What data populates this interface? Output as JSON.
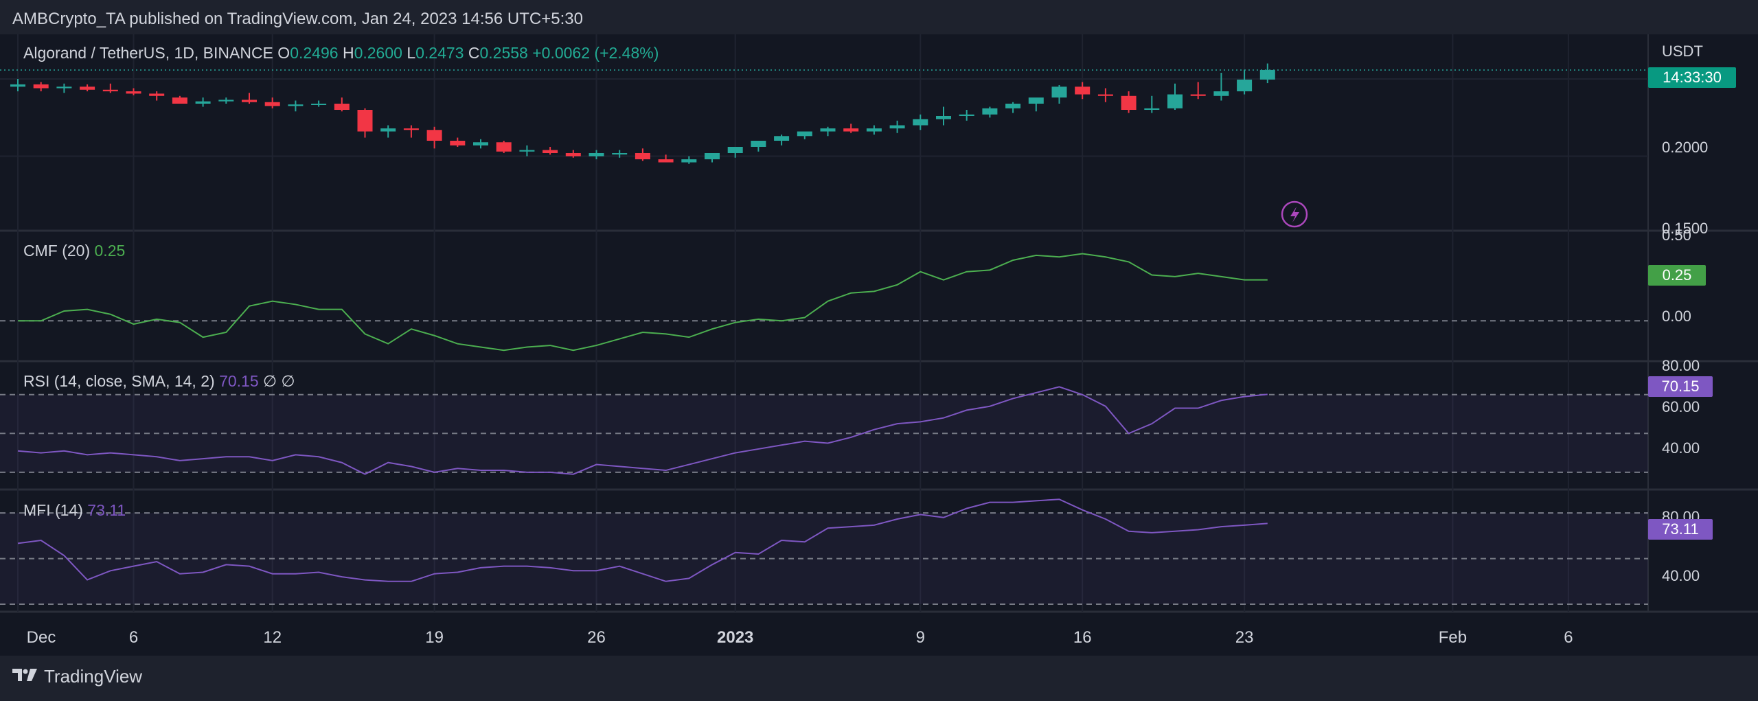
{
  "header": {
    "published": "AMBCrypto_TA published on TradingView.com, Jan 24, 2023 14:56 UTC+5:30"
  },
  "footer": {
    "brand": "TradingView"
  },
  "main": {
    "symbol": "Algorand / TetherUS, 1D, BINANCE",
    "o_label": "O",
    "o": "0.2496",
    "h_label": "H",
    "h": "0.2600",
    "l_label": "L",
    "l": "0.2473",
    "c_label": "C",
    "c": "0.2558",
    "change": "+0.0062 (+2.48%)",
    "currency": "USDT",
    "countdown": "14:33:30",
    "yticks": [
      "0.2000",
      "0.1500"
    ]
  },
  "cmf": {
    "label": "CMF (20)",
    "value": "0.25",
    "badge": "0.25",
    "yticks": [
      "0.50",
      "0.00"
    ]
  },
  "rsi": {
    "label": "RSI (14, close, SMA, 14, 2)",
    "value": "70.15",
    "extra": "∅ ∅",
    "badge": "70.15",
    "yticks": [
      "80.00",
      "60.00",
      "40.00"
    ]
  },
  "mfi": {
    "label": "MFI (14)",
    "value": "73.11",
    "badge": "73.11",
    "yticks": [
      "80.00",
      "40.00"
    ]
  },
  "xaxis": {
    "labels": [
      "Dec",
      "6",
      "12",
      "19",
      "26",
      "2023",
      "9",
      "16",
      "23",
      "Feb",
      "6"
    ]
  },
  "colors": {
    "up": "#26a69a",
    "down": "#f23645",
    "cmf": "#4caf50",
    "rsi": "#7e57c2",
    "bg": "#131722"
  },
  "chart_data": [
    {
      "type": "candlestick",
      "title": "Algorand / TetherUS, 1D, BINANCE",
      "ylabel": "USDT",
      "ylim": [
        0.15,
        0.27
      ],
      "x": [
        "Dec 1",
        "Dec 2",
        "Dec 3",
        "Dec 4",
        "Dec 5",
        "Dec 6",
        "Dec 7",
        "Dec 8",
        "Dec 9",
        "Dec 10",
        "Dec 11",
        "Dec 12",
        "Dec 13",
        "Dec 14",
        "Dec 15",
        "Dec 16",
        "Dec 17",
        "Dec 18",
        "Dec 19",
        "Dec 20",
        "Dec 21",
        "Dec 22",
        "Dec 23",
        "Dec 24",
        "Dec 25",
        "Dec 26",
        "Dec 27",
        "Dec 28",
        "Dec 29",
        "Dec 30",
        "Dec 31",
        "Jan 1",
        "Jan 2",
        "Jan 3",
        "Jan 4",
        "Jan 5",
        "Jan 6",
        "Jan 7",
        "Jan 8",
        "Jan 9",
        "Jan 10",
        "Jan 11",
        "Jan 12",
        "Jan 13",
        "Jan 14",
        "Jan 15",
        "Jan 16",
        "Jan 17",
        "Jan 18",
        "Jan 19",
        "Jan 20",
        "Jan 21",
        "Jan 22",
        "Jan 23",
        "Jan 24"
      ],
      "open": [
        0.245,
        0.2465,
        0.244,
        0.245,
        0.243,
        0.242,
        0.2405,
        0.238,
        0.234,
        0.2355,
        0.2365,
        0.235,
        0.2325,
        0.2335,
        0.234,
        0.23,
        0.216,
        0.218,
        0.217,
        0.21,
        0.207,
        0.209,
        0.203,
        0.204,
        0.202,
        0.2,
        0.202,
        0.202,
        0.198,
        0.196,
        0.198,
        0.202,
        0.206,
        0.21,
        0.213,
        0.216,
        0.218,
        0.216,
        0.218,
        0.22,
        0.224,
        0.226,
        0.227,
        0.231,
        0.234,
        0.238,
        0.245,
        0.24,
        0.239,
        0.23,
        0.231,
        0.24,
        0.239,
        0.242,
        0.2496
      ],
      "high": [
        0.25,
        0.248,
        0.247,
        0.2465,
        0.247,
        0.244,
        0.242,
        0.239,
        0.238,
        0.238,
        0.241,
        0.238,
        0.236,
        0.236,
        0.238,
        0.231,
        0.22,
        0.22,
        0.219,
        0.212,
        0.211,
        0.21,
        0.207,
        0.206,
        0.204,
        0.204,
        0.204,
        0.205,
        0.201,
        0.2,
        0.201,
        0.205,
        0.21,
        0.214,
        0.216,
        0.219,
        0.221,
        0.22,
        0.223,
        0.227,
        0.232,
        0.23,
        0.232,
        0.235,
        0.238,
        0.246,
        0.248,
        0.244,
        0.242,
        0.239,
        0.247,
        0.248,
        0.254,
        0.256,
        0.26
      ],
      "low": [
        0.242,
        0.242,
        0.241,
        0.242,
        0.241,
        0.2395,
        0.236,
        0.234,
        0.232,
        0.234,
        0.234,
        0.231,
        0.229,
        0.232,
        0.229,
        0.212,
        0.212,
        0.212,
        0.205,
        0.206,
        0.205,
        0.202,
        0.2,
        0.201,
        0.199,
        0.198,
        0.199,
        0.197,
        0.196,
        0.195,
        0.196,
        0.199,
        0.203,
        0.207,
        0.211,
        0.213,
        0.215,
        0.214,
        0.215,
        0.217,
        0.22,
        0.223,
        0.225,
        0.228,
        0.229,
        0.234,
        0.237,
        0.235,
        0.228,
        0.228,
        0.23,
        0.237,
        0.236,
        0.24,
        0.2473
      ],
      "close": [
        0.2465,
        0.244,
        0.245,
        0.243,
        0.242,
        0.2405,
        0.239,
        0.234,
        0.2355,
        0.2365,
        0.235,
        0.2325,
        0.2335,
        0.234,
        0.23,
        0.216,
        0.218,
        0.217,
        0.21,
        0.207,
        0.209,
        0.203,
        0.204,
        0.202,
        0.2,
        0.202,
        0.202,
        0.198,
        0.196,
        0.198,
        0.202,
        0.206,
        0.21,
        0.213,
        0.216,
        0.218,
        0.216,
        0.218,
        0.22,
        0.224,
        0.226,
        0.227,
        0.231,
        0.234,
        0.238,
        0.245,
        0.24,
        0.239,
        0.23,
        0.231,
        0.24,
        0.239,
        0.242,
        0.2496,
        0.2558
      ]
    },
    {
      "type": "line",
      "title": "CMF (20)",
      "ylim": [
        -0.2,
        0.5
      ],
      "x": [
        "Dec 1",
        "Dec 2",
        "Dec 3",
        "Dec 4",
        "Dec 5",
        "Dec 6",
        "Dec 7",
        "Dec 8",
        "Dec 9",
        "Dec 10",
        "Dec 11",
        "Dec 12",
        "Dec 13",
        "Dec 14",
        "Dec 15",
        "Dec 16",
        "Dec 17",
        "Dec 18",
        "Dec 19",
        "Dec 20",
        "Dec 21",
        "Dec 22",
        "Dec 23",
        "Dec 24",
        "Dec 25",
        "Dec 26",
        "Dec 27",
        "Dec 28",
        "Dec 29",
        "Dec 30",
        "Dec 31",
        "Jan 1",
        "Jan 2",
        "Jan 3",
        "Jan 4",
        "Jan 5",
        "Jan 6",
        "Jan 7",
        "Jan 8",
        "Jan 9",
        "Jan 10",
        "Jan 11",
        "Jan 12",
        "Jan 13",
        "Jan 14",
        "Jan 15",
        "Jan 16",
        "Jan 17",
        "Jan 18",
        "Jan 19",
        "Jan 20",
        "Jan 21",
        "Jan 22",
        "Jan 23",
        "Jan 24"
      ],
      "values": [
        0.0,
        0.0,
        0.06,
        0.07,
        0.04,
        -0.02,
        0.01,
        -0.01,
        -0.1,
        -0.07,
        0.09,
        0.12,
        0.1,
        0.07,
        0.07,
        -0.08,
        -0.14,
        -0.05,
        -0.09,
        -0.14,
        -0.16,
        -0.18,
        -0.16,
        -0.15,
        -0.18,
        -0.15,
        -0.11,
        -0.07,
        -0.08,
        -0.1,
        -0.05,
        -0.01,
        0.01,
        0.0,
        0.02,
        0.12,
        0.17,
        0.18,
        0.22,
        0.3,
        0.25,
        0.3,
        0.31,
        0.37,
        0.4,
        0.39,
        0.41,
        0.39,
        0.36,
        0.28,
        0.27,
        0.29,
        0.27,
        0.25,
        0.25
      ]
    },
    {
      "type": "line",
      "title": "RSI (14, close, SMA, 14, 2)",
      "ylim": [
        25,
        83
      ],
      "x": [
        "Dec 1",
        "Dec 2",
        "Dec 3",
        "Dec 4",
        "Dec 5",
        "Dec 6",
        "Dec 7",
        "Dec 8",
        "Dec 9",
        "Dec 10",
        "Dec 11",
        "Dec 12",
        "Dec 13",
        "Dec 14",
        "Dec 15",
        "Dec 16",
        "Dec 17",
        "Dec 18",
        "Dec 19",
        "Dec 20",
        "Dec 21",
        "Dec 22",
        "Dec 23",
        "Dec 24",
        "Dec 25",
        "Dec 26",
        "Dec 27",
        "Dec 28",
        "Dec 29",
        "Dec 30",
        "Dec 31",
        "Jan 1",
        "Jan 2",
        "Jan 3",
        "Jan 4",
        "Jan 5",
        "Jan 6",
        "Jan 7",
        "Jan 8",
        "Jan 9",
        "Jan 10",
        "Jan 11",
        "Jan 12",
        "Jan 13",
        "Jan 14",
        "Jan 15",
        "Jan 16",
        "Jan 17",
        "Jan 18",
        "Jan 19",
        "Jan 20",
        "Jan 21",
        "Jan 22",
        "Jan 23",
        "Jan 24"
      ],
      "values": [
        41,
        40,
        41,
        39,
        40,
        39,
        38,
        36,
        37,
        38,
        38,
        36,
        39,
        38,
        35,
        29,
        35,
        33,
        30,
        32,
        31,
        31,
        30,
        30,
        29,
        34,
        33,
        32,
        31,
        34,
        37,
        40,
        42,
        44,
        46,
        45,
        48,
        52,
        55,
        56,
        58,
        62,
        64,
        68,
        71,
        74,
        70,
        64,
        50,
        55,
        63,
        63,
        67,
        69,
        70.15
      ]
    },
    {
      "type": "line",
      "title": "MFI (14)",
      "ylim": [
        20,
        90
      ],
      "x": [
        "Dec 1",
        "Dec 2",
        "Dec 3",
        "Dec 4",
        "Dec 5",
        "Dec 6",
        "Dec 7",
        "Dec 8",
        "Dec 9",
        "Dec 10",
        "Dec 11",
        "Dec 12",
        "Dec 13",
        "Dec 14",
        "Dec 15",
        "Dec 16",
        "Dec 17",
        "Dec 18",
        "Dec 19",
        "Dec 20",
        "Dec 21",
        "Dec 22",
        "Dec 23",
        "Dec 24",
        "Dec 25",
        "Dec 26",
        "Dec 27",
        "Dec 28",
        "Dec 29",
        "Dec 30",
        "Dec 31",
        "Jan 1",
        "Jan 2",
        "Jan 3",
        "Jan 4",
        "Jan 5",
        "Jan 6",
        "Jan 7",
        "Jan 8",
        "Jan 9",
        "Jan 10",
        "Jan 11",
        "Jan 12",
        "Jan 13",
        "Jan 14",
        "Jan 15",
        "Jan 16",
        "Jan 17",
        "Jan 18",
        "Jan 19",
        "Jan 20",
        "Jan 21",
        "Jan 22",
        "Jan 23",
        "Jan 24"
      ],
      "values": [
        60,
        62,
        52,
        36,
        42,
        45,
        48,
        40,
        41,
        46,
        45,
        40,
        40,
        41,
        38,
        36,
        35,
        35,
        40,
        41,
        44,
        45,
        45,
        44,
        42,
        42,
        45,
        40,
        35,
        37,
        46,
        54,
        53,
        62,
        61,
        70,
        71,
        72,
        76,
        79,
        77,
        83,
        87,
        87,
        88,
        89,
        82,
        76,
        68,
        67,
        68,
        69,
        71,
        72,
        73.11
      ]
    }
  ]
}
